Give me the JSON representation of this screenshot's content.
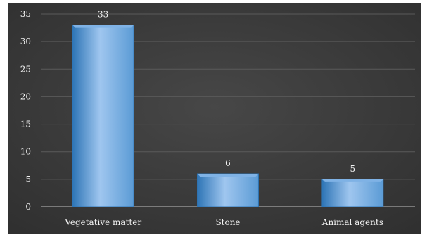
{
  "chart_data": {
    "type": "bar",
    "categories": [
      "Vegetative matter",
      "Stone",
      "Animal agents"
    ],
    "values": [
      33,
      6,
      5
    ],
    "data_labels": [
      "33",
      "6",
      "5"
    ],
    "title": "",
    "xlabel": "",
    "ylabel": "",
    "ylim": [
      0,
      35
    ],
    "yticks": [
      0,
      5,
      10,
      15,
      20,
      25,
      30,
      35
    ],
    "grid": true,
    "legend": "none",
    "colors": {
      "background": "#3d3d3d",
      "bar_fill": "#5b9bd5",
      "bar_highlight": "#9fc6ef",
      "bar_top": "#7fb2e5",
      "bar_edge": "#2e75b6",
      "gridline": "#5a5a5a",
      "axis": "#bfbfbf",
      "text": "#f2f2f2"
    }
  }
}
